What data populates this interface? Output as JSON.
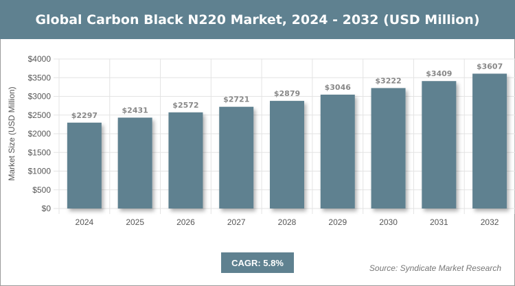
{
  "header": {
    "title": "Global Carbon Black N220 Market, 2024 - 2032 (USD Million)"
  },
  "chart_data": {
    "type": "bar",
    "title": "Global Carbon Black N220 Market, 2024 - 2032 (USD Million)",
    "categories": [
      "2024",
      "2025",
      "2026",
      "2027",
      "2028",
      "2029",
      "2030",
      "2031",
      "2032"
    ],
    "values": [
      2297,
      2431,
      2572,
      2721,
      2879,
      3046,
      3222,
      3409,
      3607
    ],
    "data_labels": [
      "$2297",
      "$2431",
      "$2572",
      "$2721",
      "$2879",
      "$3046",
      "$3222",
      "$3409",
      "$3607"
    ],
    "xlabel": "",
    "ylabel": "Market Size (USD Million)",
    "ylim": [
      0,
      4000
    ],
    "yticks": [
      "$0",
      "$500",
      "$1000",
      "$1500",
      "$2000",
      "$2500",
      "$3000",
      "$3500",
      "$4000"
    ],
    "grid": true,
    "bar_color": "#5f8190"
  },
  "footer": {
    "cagr": "CAGR: 5.8%",
    "source": "Source: Syndicate Market Research"
  }
}
